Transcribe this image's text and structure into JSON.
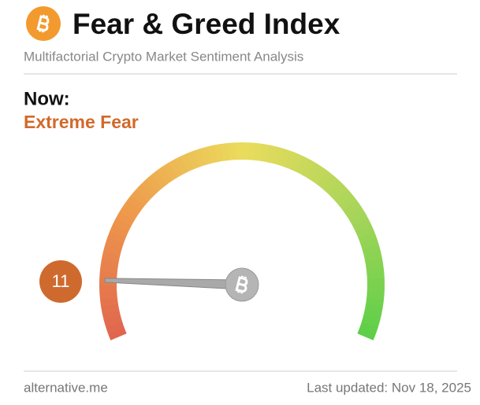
{
  "chart_data": {
    "type": "gauge",
    "title": "Fear & Greed Index",
    "subtitle": "Multifactorial Crypto Market Sentiment Analysis",
    "now_label": "Now:",
    "classification": "Extreme Fear",
    "value": 11,
    "ylim": [
      0,
      100
    ],
    "colors": [
      "#e0654e",
      "#ee9a4c",
      "#ebdc5c",
      "#a8d55a",
      "#5ccf48"
    ],
    "source": "alternative.me",
    "updated": "Last updated: Nov 18, 2025"
  }
}
